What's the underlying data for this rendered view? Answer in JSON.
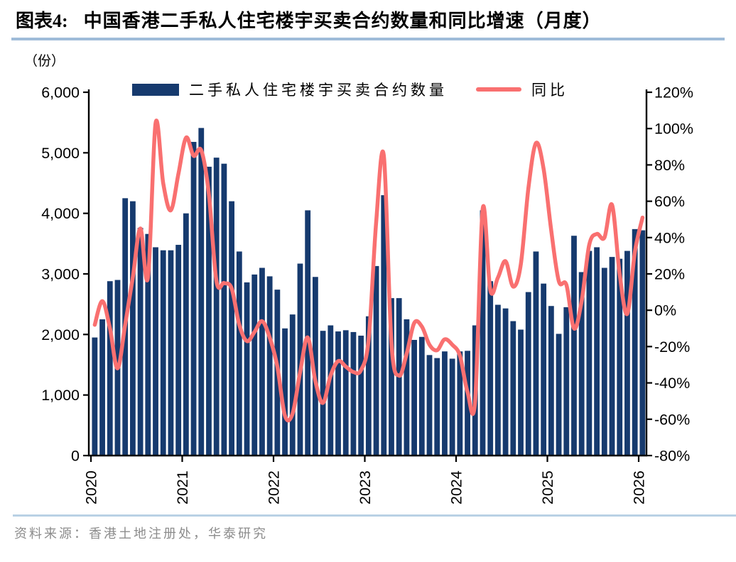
{
  "title": {
    "prefix": "图表4:",
    "text": "中国香港二手私人住宅楼宇买卖合约数量和同比增速（月度）"
  },
  "unit_label": "（份）",
  "legend": {
    "bars_label": "二手私人住宅楼宇买卖合约数量",
    "line_label": "同比"
  },
  "source": "资料来源：香港土地注册处，华泰研究",
  "colors": {
    "bar": "#163A6E",
    "line": "#F97070",
    "axis": "#000000",
    "title_underline": "#9FBCD9",
    "footer_divider": "#B9D1E5",
    "source_text": "#8C8C8C"
  },
  "chart_data": {
    "type": "bar+line",
    "title": "中国香港二手私人住宅楼宇买卖合约数量和同比增速（月度）",
    "start_month": "2020-01",
    "end_month": "2026-01",
    "x_ticks": [
      "2020",
      "2021",
      "2022",
      "2023",
      "2024",
      "2025",
      "2026"
    ],
    "left_axis": {
      "label": "（份）",
      "min": 0,
      "max": 6000,
      "step": 1000,
      "ticks": [
        "0",
        "1,000",
        "2,000",
        "3,000",
        "4,000",
        "5,000",
        "6,000"
      ]
    },
    "right_axis": {
      "label": "同比",
      "min": -80,
      "max": 120,
      "step": 20,
      "unit": "%",
      "ticks": [
        "-80%",
        "-60%",
        "-40%",
        "-20%",
        "0%",
        "20%",
        "40%",
        "60%",
        "80%",
        "100%",
        "120%"
      ]
    },
    "series": [
      {
        "name": "二手私人住宅楼宇买卖合约数量",
        "type": "bar",
        "axis": "left",
        "values": [
          1950,
          2250,
          2880,
          2900,
          4250,
          4200,
          3760,
          3660,
          3440,
          3390,
          3390,
          3480,
          4000,
          5180,
          5410,
          4770,
          4920,
          4820,
          4200,
          3370,
          2860,
          2990,
          3100,
          2960,
          2740,
          2100,
          2330,
          3170,
          4050,
          2950,
          2060,
          2150,
          2050,
          2070,
          2040,
          1980,
          2300,
          3130,
          4300,
          2600,
          2600,
          2250,
          1910,
          1960,
          1660,
          1610,
          1720,
          1600,
          1720,
          1730,
          2150,
          4050,
          2880,
          2490,
          2430,
          2220,
          2080,
          2700,
          3370,
          2840,
          2470,
          2010,
          2450,
          3630,
          3030,
          3380,
          3440,
          3100,
          3280,
          3250,
          3380,
          3740,
          3720
        ]
      },
      {
        "name": "同比",
        "type": "line",
        "axis": "right",
        "unit": "%",
        "values": [
          -8,
          5,
          -10,
          -32,
          -8,
          18,
          45,
          18,
          103,
          70,
          55,
          75,
          95,
          85,
          88,
          64,
          16,
          15,
          12,
          -8,
          -17,
          -12,
          -6,
          -15,
          -31,
          -58,
          -57,
          -34,
          -15,
          -39,
          -51,
          -36,
          -28,
          -31,
          -34,
          -33,
          -16,
          49,
          85,
          -18,
          -36,
          -24,
          -7,
          -9,
          -19,
          -22,
          -16,
          -19,
          -25,
          -45,
          -50,
          56,
          11,
          18,
          27,
          13,
          25,
          67,
          92,
          78,
          44,
          16,
          14,
          -10,
          5,
          36,
          42,
          40,
          58,
          20,
          -2,
          32,
          51
        ]
      }
    ],
    "grid": false,
    "legend_position": "top-inside"
  }
}
